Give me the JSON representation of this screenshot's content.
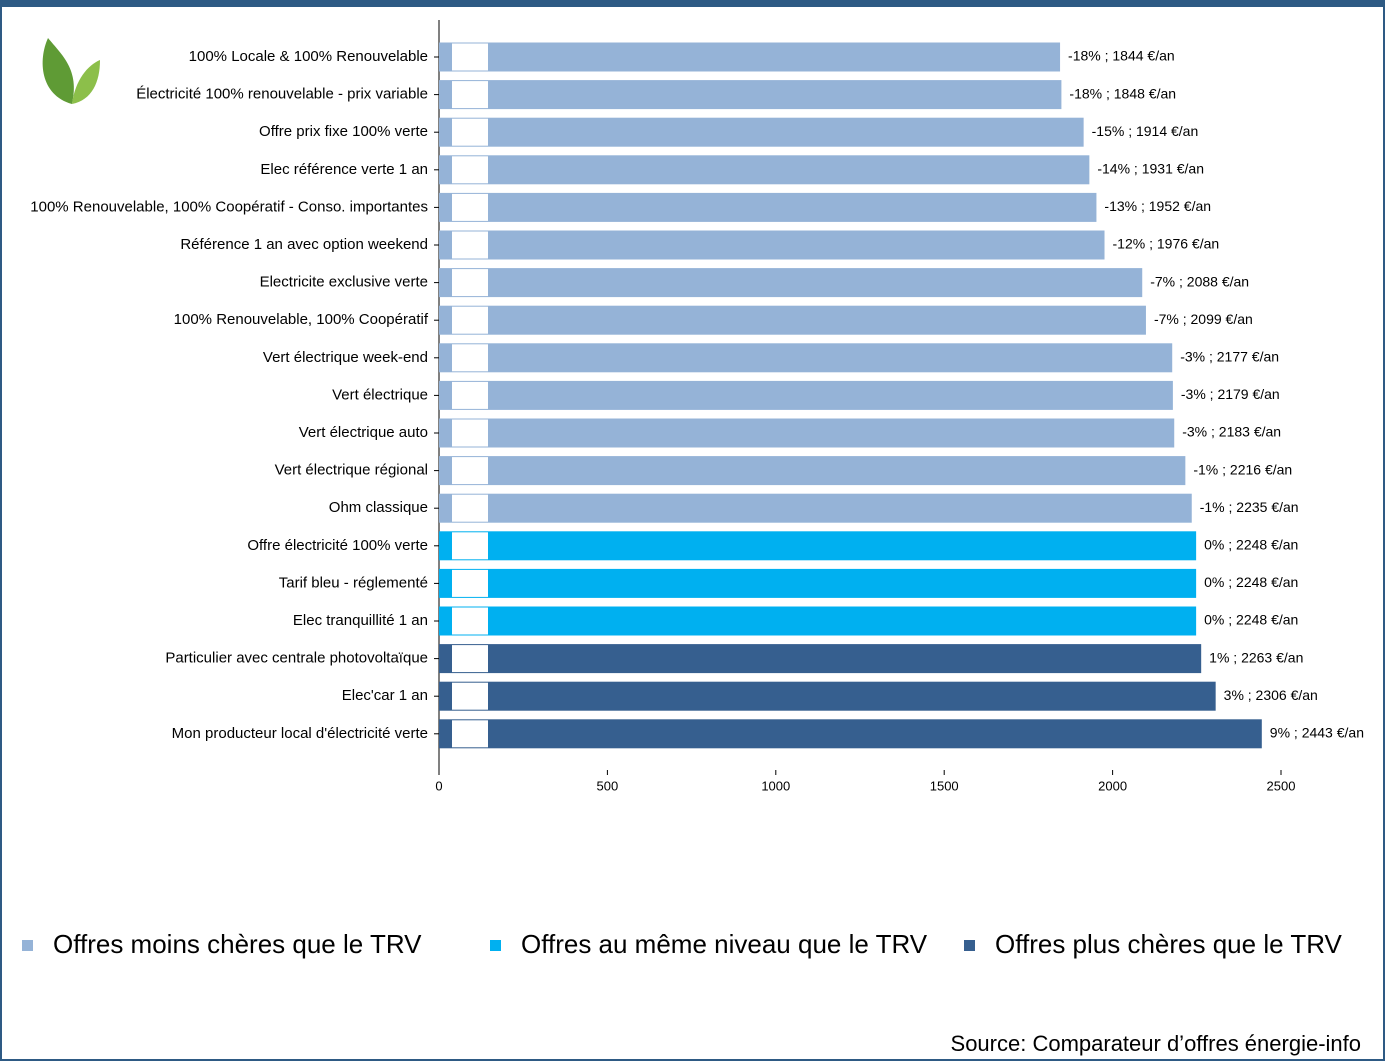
{
  "chart_data": {
    "type": "bar",
    "orientation": "horizontal",
    "categories": [
      "100% Locale & 100% Renouvelable",
      "Électricité 100% renouvelable - prix variable",
      "Offre prix fixe 100% verte",
      "Elec référence verte 1 an",
      "100% Renouvelable, 100% Coopératif - Conso. importantes",
      "Référence 1 an avec option weekend",
      "Electricite exclusive verte",
      "100% Renouvelable, 100% Coopératif",
      "Vert électrique week-end",
      "Vert électrique",
      "Vert électrique auto",
      "Vert électrique régional",
      "Ohm classique",
      "Offre électricité 100% verte",
      "Tarif bleu - réglementé",
      "Elec tranquillité 1 an",
      "Particulier avec centrale photovoltaïque",
      "Elec'car 1 an",
      "Mon producteur local d'électricité verte"
    ],
    "series": [
      {
        "name": "Offres moins chères que le TRV",
        "color": "#95b3d7",
        "values": [
          1844,
          1848,
          1914,
          1931,
          1952,
          1976,
          2088,
          2099,
          2177,
          2179,
          2183,
          2216,
          2235,
          null,
          null,
          null,
          null,
          null,
          null
        ],
        "value_labels": [
          "-18% ; 1844 €/an",
          "-18% ; 1848 €/an",
          "-15% ; 1914 €/an",
          "-14% ; 1931 €/an",
          "-13% ; 1952 €/an",
          "-12% ; 1976 €/an",
          "-7% ; 2088 €/an",
          "-7% ; 2099 €/an",
          "-3% ; 2177 €/an",
          "-3% ; 2179 €/an",
          "-3% ; 2183 €/an",
          "-1% ; 2216 €/an",
          "-1% ; 2235 €/an",
          null,
          null,
          null,
          null,
          null,
          null
        ]
      },
      {
        "name": "Offres au même niveau que le TRV",
        "color": "#00b0f0",
        "values": [
          null,
          null,
          null,
          null,
          null,
          null,
          null,
          null,
          null,
          null,
          null,
          null,
          null,
          2248,
          2248,
          2248,
          null,
          null,
          null
        ],
        "value_labels": [
          null,
          null,
          null,
          null,
          null,
          null,
          null,
          null,
          null,
          null,
          null,
          null,
          null,
          "0% ; 2248 €/an",
          "0% ; 2248 €/an",
          "0% ; 2248 €/an",
          null,
          null,
          null
        ]
      },
      {
        "name": "Offres plus chères que le TRV",
        "color": "#365f8f",
        "values": [
          null,
          null,
          null,
          null,
          null,
          null,
          null,
          null,
          null,
          null,
          null,
          null,
          null,
          null,
          null,
          null,
          2263,
          2306,
          2443
        ],
        "value_labels": [
          null,
          null,
          null,
          null,
          null,
          null,
          null,
          null,
          null,
          null,
          null,
          null,
          null,
          null,
          null,
          null,
          "1% ; 2263 €/an",
          "3% ; 2306 €/an",
          "9% ; 2443 €/an"
        ]
      }
    ],
    "xlim": [
      0,
      2500
    ],
    "xticks": [
      0,
      500,
      1000,
      1500,
      2000,
      2500
    ],
    "source": "Source: Comparateur d’offres énergie-info"
  }
}
